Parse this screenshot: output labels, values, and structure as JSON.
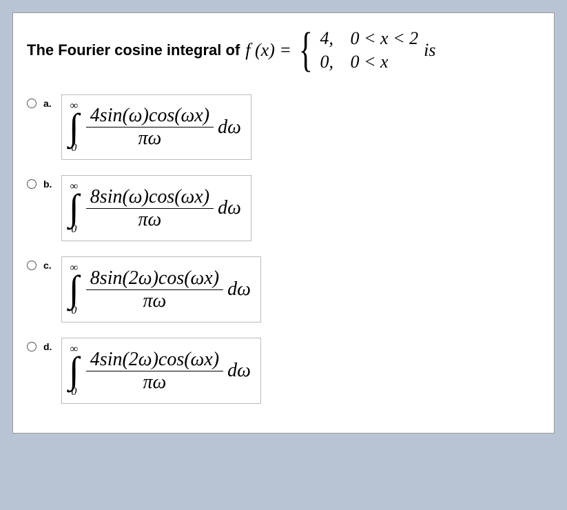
{
  "panel": {
    "background": "#ffffff",
    "border_color": "#999999"
  },
  "page_background": "#b8c4d4",
  "question": {
    "intro": "The Fourier cosine integral of ",
    "fx_lhs": "f (x) =",
    "piecewise": [
      {
        "value": "4,",
        "cond": "0 < x < 2"
      },
      {
        "value": "0,",
        "cond": "0 < x"
      }
    ],
    "trail": "is"
  },
  "options": [
    {
      "label": "a.",
      "selected": false,
      "upper": "∞",
      "lower": "0",
      "numerator": "4sin(ω)cos(ωx)",
      "denominator": "πω",
      "diff": "dω"
    },
    {
      "label": "b.",
      "selected": false,
      "upper": "∞",
      "lower": "0",
      "numerator": "8sin(ω)cos(ωx)",
      "denominator": "πω",
      "diff": "dω"
    },
    {
      "label": "c.",
      "selected": false,
      "upper": "∞",
      "lower": "0",
      "numerator": "8sin(2ω)cos(ωx)",
      "denominator": "πω",
      "diff": "dω"
    },
    {
      "label": "d.",
      "selected": false,
      "upper": "∞",
      "lower": "0",
      "numerator": "4sin(2ω)cos(ωx)",
      "denominator": "πω",
      "diff": "dω"
    }
  ]
}
